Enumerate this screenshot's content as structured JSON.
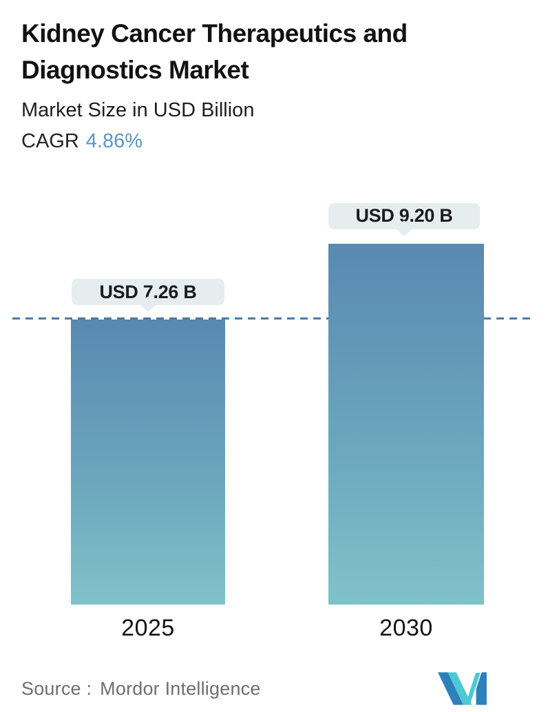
{
  "header": {
    "title_line1": "Kidney Cancer Therapeutics and",
    "title_line2": "Diagnostics Market",
    "subtitle": "Market Size in USD Billion",
    "cagr_label": "CAGR",
    "cagr_value": "4.86%"
  },
  "chart_data": {
    "type": "bar",
    "title": "Kidney Cancer Therapeutics and Diagnostics Market",
    "subtitle": "Market Size in USD Billion",
    "cagr": "4.86%",
    "unit": "USD Billion",
    "categories": [
      "2025",
      "2030"
    ],
    "values": [
      7.26,
      9.2
    ],
    "value_labels": [
      "USD 7.26 B",
      "USD 9.20 B"
    ],
    "ylim": [
      0,
      9.2
    ],
    "grid": false,
    "legend": false,
    "reference_line": {
      "value": 7.26,
      "style": "dashed",
      "color": "#4a7aa5"
    },
    "bar_gradient_top": "#5989b1",
    "bar_gradient_bottom": "#80c2c9"
  },
  "footer": {
    "source_label": "Source :",
    "source_value": "Mordor Intelligence",
    "logo_name": "mordor-intelligence-logo",
    "logo_blue": "#2e80ba",
    "logo_teal": "#4cc9d4"
  },
  "colors": {
    "background": "#ffffff",
    "title_text": "#121212",
    "cagr_accent": "#5b94c6",
    "tooltip_background": "#e5edef",
    "tooltip_text": "#1b1b1b",
    "dashed_line": "#4a7aa5",
    "axis_label": "#141414",
    "source_text": "#6e6e6e"
  }
}
